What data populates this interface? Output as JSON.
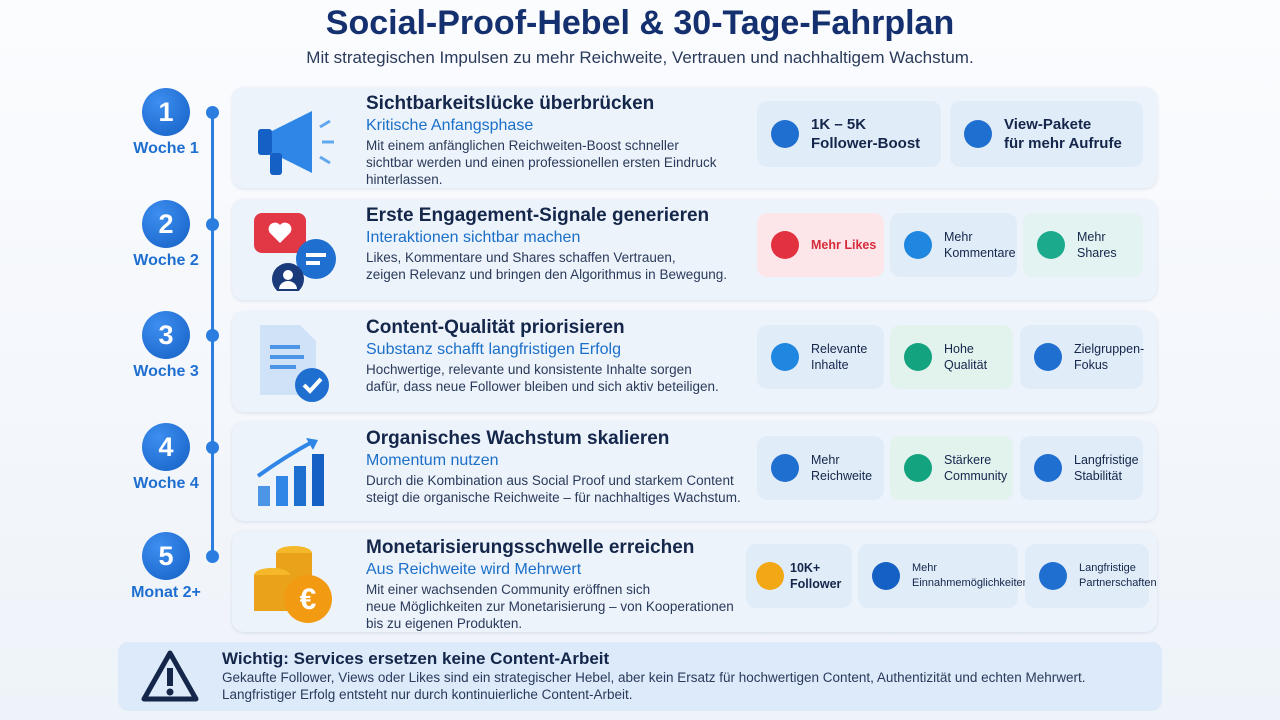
{
  "header": {
    "title": "Social-Proof-Hebel & 30-Tage-Fahrplan",
    "subtitle": "Mit strategischen Impulsen zu mehr Reichweite, Vertrauen und nachhaltigem Wachstum."
  },
  "steps": [
    {
      "number": "1",
      "period": "Woche 1",
      "title": "Sichtbarkeitslücke überbrücken",
      "subtitle": "Kritische Anfangsphase",
      "description": [
        "Mit einem anfänglichen Reichweiten-Boost schneller",
        "sichtbar werden und einen professionellen ersten Eindruck",
        "hinterlassen."
      ],
      "badges": [
        {
          "lines": [
            "1K – 5K",
            "Follower-Boost"
          ]
        },
        {
          "lines": [
            "View-Pakete",
            "für mehr Aufrufe"
          ]
        }
      ]
    },
    {
      "number": "2",
      "period": "Woche 2",
      "title": "Erste Engagement-Signale generieren",
      "subtitle": "Interaktionen sichtbar machen",
      "description": [
        "Likes, Kommentare und Shares schaffen Vertrauen,",
        "zeigen Relevanz und bringen den Algorithmus in Bewegung."
      ],
      "badges": [
        {
          "lines": [
            "Mehr Likes"
          ]
        },
        {
          "lines": [
            "Mehr",
            "Kommentare"
          ]
        },
        {
          "lines": [
            "Mehr",
            "Shares"
          ]
        }
      ]
    },
    {
      "number": "3",
      "period": "Woche 3",
      "title": "Content-Qualität priorisieren",
      "subtitle": "Substanz schafft langfristigen Erfolg",
      "description": [
        "Hochwertige, relevante und konsistente Inhalte sorgen",
        "dafür, dass neue Follower bleiben und sich aktiv beteiligen."
      ],
      "badges": [
        {
          "lines": [
            "Relevante",
            "Inhalte"
          ]
        },
        {
          "lines": [
            "Hohe",
            "Qualität"
          ]
        },
        {
          "lines": [
            "Zielgruppen-",
            "Fokus"
          ]
        }
      ]
    },
    {
      "number": "4",
      "period": "Woche 4",
      "title": "Organisches Wachstum skalieren",
      "subtitle": "Momentum nutzen",
      "description": [
        "Durch die Kombination aus Social Proof und starkem Content",
        "steigt die organische Reichweite – für nachhaltiges Wachstum."
      ],
      "badges": [
        {
          "lines": [
            "Mehr",
            "Reichweite"
          ]
        },
        {
          "lines": [
            "Stärkere",
            "Community"
          ]
        },
        {
          "lines": [
            "Langfristige",
            "Stabilität"
          ]
        }
      ]
    },
    {
      "number": "5",
      "period": "Monat 2+",
      "title": "Monetarisierungsschwelle erreichen",
      "subtitle": "Aus Reichweite wird Mehrwert",
      "description": [
        "Mit einer wachsenden Community eröffnen sich",
        "neue Möglichkeiten zur Monetarisierung – von Kooperationen",
        "bis zu eigenen Produkten."
      ],
      "badges": [
        {
          "lines": [
            "10K+",
            "Follower"
          ]
        },
        {
          "lines": [
            "Mehr",
            "Einnahmemöglichkeiten"
          ]
        },
        {
          "lines": [
            "Langfristige",
            "Partnerschaften"
          ]
        }
      ]
    }
  ],
  "notice": {
    "title": "Wichtig: Services ersetzen keine Content-Arbeit",
    "lines": [
      "Gekaufte Follower, Views oder Likes sind ein strategischer Hebel, aber kein Ersatz für hochwertigen Content, Authentizität und echten Mehrwert.",
      "Langfristiger Erfolg entsteht nur durch kontinuierliche Content-Arbeit."
    ]
  }
}
